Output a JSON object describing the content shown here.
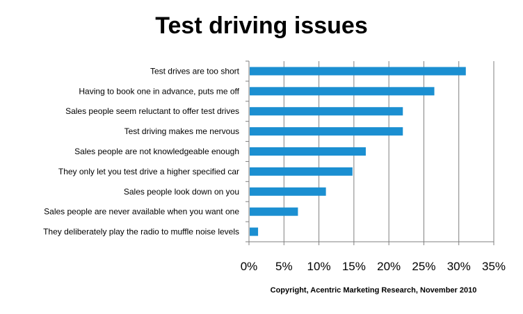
{
  "chart_data": {
    "type": "bar",
    "orientation": "horizontal",
    "title": "Test driving issues",
    "categories": [
      "Test drives are too short",
      "Having to book one in advance, puts me off",
      "Sales people seem reluctant to offer test drives",
      "Test driving makes me nervous",
      "Sales people are not knowledgeable enough",
      "They only let you test drive a higher specified car",
      "Sales people look down on you",
      "Sales people are never available when you want one",
      "They deliberately play the radio to muffle noise levels"
    ],
    "values": [
      31,
      26.5,
      22,
      22,
      16.7,
      14.8,
      11,
      7,
      1.3
    ],
    "xlim": [
      0,
      35
    ],
    "xticks": [
      0,
      5,
      10,
      15,
      20,
      25,
      30,
      35
    ],
    "xtick_labels": [
      "0%",
      "5%",
      "10%",
      "15%",
      "20%",
      "25%",
      "30%",
      "35%"
    ],
    "xlabel": "",
    "ylabel": "",
    "grid": "vertical",
    "bar_color": "#1b8fd1",
    "gridline_color": "#7f7f7f"
  },
  "footer": {
    "copyright": "Copyright, Acentric Marketing Research, November 2010"
  }
}
